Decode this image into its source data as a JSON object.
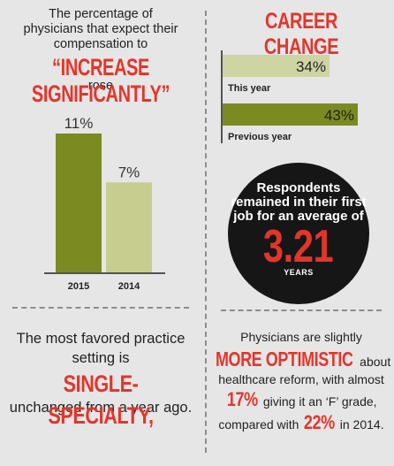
{
  "left_top": {
    "intro_lines": [
      "The percentage of",
      "physicians that expect their",
      "compensation to"
    ],
    "highlight": "“INCREASE SIGNIFICANTLY”",
    "outro": "rose"
  },
  "career": {
    "title": "CAREER CHANGE"
  },
  "chart_data": [
    {
      "type": "bar",
      "categories": [
        "2015",
        "2014"
      ],
      "values": [
        11,
        7
      ],
      "value_labels": [
        "11%",
        "7%"
      ],
      "colors": [
        "#7b8b21",
        "#c6cd8f"
      ]
    },
    {
      "type": "bar",
      "orientation": "horizontal",
      "categories": [
        "This year",
        "Previous year"
      ],
      "values": [
        34,
        43
      ],
      "value_labels": [
        "34%",
        "43%"
      ],
      "colors": [
        "#cfd5a2",
        "#7b8b21"
      ]
    }
  ],
  "circle": {
    "lines": [
      "Respondents",
      "remained in their first",
      "job for an average of"
    ],
    "number": "3.21",
    "unit": "YEARS"
  },
  "bottom_left": {
    "line1": "The most favored practice",
    "line2": "setting is",
    "highlight": "SINGLE-SPECIALTY,",
    "line3": "unchanged from a year ago."
  },
  "bottom_right": {
    "line1": "Physicians are slightly",
    "highlight": "MORE OPTIMISTIC",
    "about": " about",
    "line2": "healthcare reform, with almost",
    "pct1": "17%",
    "line3": " giving it an ‘F’ grade,",
    "line4a": "compared with ",
    "pct2": "22%",
    "line4b": " in 2014."
  },
  "colors": {
    "accent_red": "#e2362b",
    "olive": "#7b8b21",
    "light_olive": "#c6cd8f",
    "background": "#e6e6e7"
  }
}
